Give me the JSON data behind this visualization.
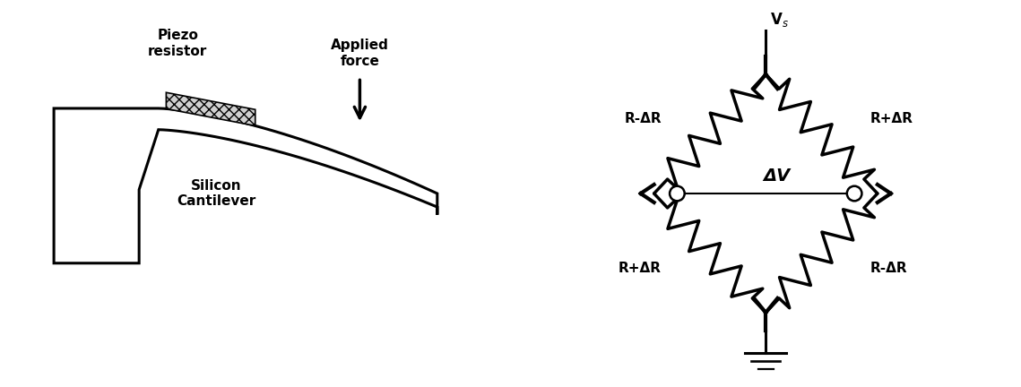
{
  "bg_color": "#ffffff",
  "line_color": "#000000",
  "fig_width": 11.39,
  "fig_height": 4.32,
  "cantilever": {
    "label_piezo": "Piezo\nresistor",
    "label_silicon": "Silicon\nCantilever",
    "label_force": "Applied\nforce"
  },
  "bridge": {
    "label_vs": "V$_s$",
    "label_dv": "ΔV",
    "label_tl": "R-ΔR",
    "label_tr": "R+ΔR",
    "label_bl": "R+ΔR",
    "label_br": "R-ΔR"
  }
}
